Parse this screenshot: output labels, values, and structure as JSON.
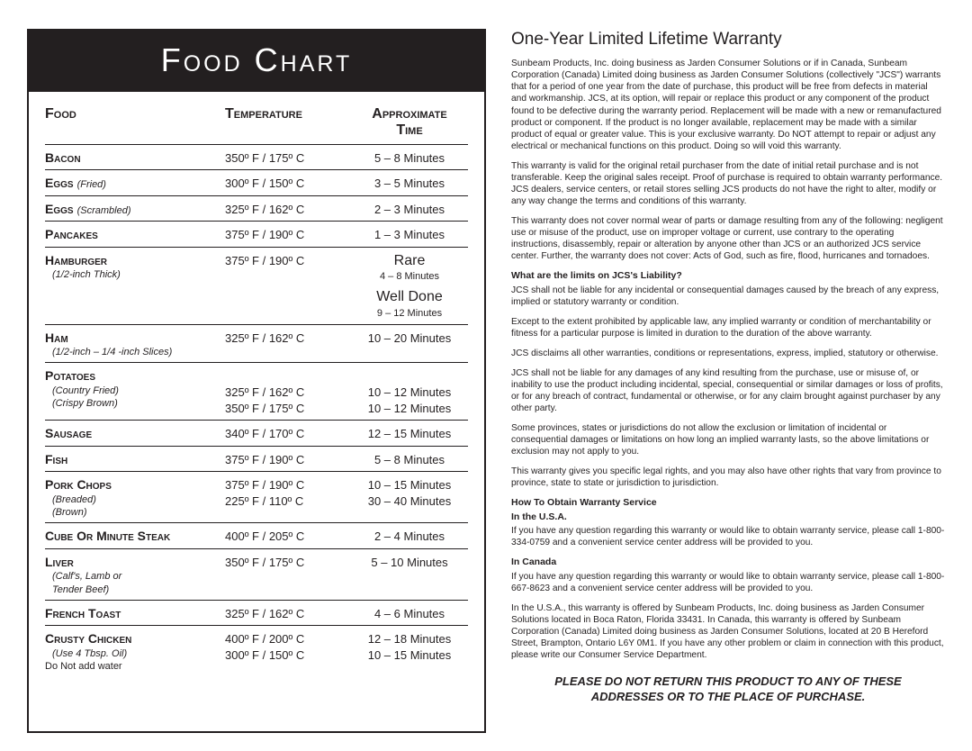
{
  "chart": {
    "title": "Food Chart",
    "headers": {
      "food": "Food",
      "temp": "Temperature",
      "approx": "Approximate",
      "time": "Time"
    },
    "rows": [
      {
        "name": "Bacon",
        "temp": "350º F / 175º C",
        "time": "5 – 8 Minutes"
      },
      {
        "name": "Eggs",
        "sub_inline": "(Fried)",
        "temp": "300º F / 150º C",
        "time": "3 – 5 Minutes"
      },
      {
        "name": "Eggs",
        "sub_inline": "(Scrambled)",
        "temp": "325º F / 162º C",
        "time": "2 – 3 Minutes"
      },
      {
        "name": "Pancakes",
        "temp": "375º F / 190º C",
        "time": "1 – 3 Minutes"
      },
      {
        "name": "Hamburger",
        "subs": [
          "(1/2-inch Thick)"
        ],
        "temp": "375º F / 190º C",
        "time_blocks": [
          {
            "head": "Rare",
            "sub": "4 – 8 Minutes"
          },
          {
            "head": "Well Done",
            "sub": "9 – 12 Minutes"
          }
        ]
      },
      {
        "name": "Ham",
        "subs": [
          "(1/2-inch  – 1/4 -inch Slices)"
        ],
        "temp": "325º F / 162º C",
        "time": "10 – 20 Minutes"
      },
      {
        "name": "Potatoes",
        "subs": [
          "(Country Fried)",
          "(Crispy Brown)"
        ],
        "temps": [
          "325º F / 162º C",
          "350º F / 175º C"
        ],
        "times": [
          "10 – 12 Minutes",
          "10 – 12 Minutes"
        ],
        "pad_top": true
      },
      {
        "name": "Sausage",
        "temp": "340º F / 170º C",
        "time": "12 – 15 Minutes"
      },
      {
        "name": "Fish",
        "temp": "375º F / 190º C",
        "time": "5 – 8 Minutes"
      },
      {
        "name": "Pork Chops",
        "subs": [
          "(Breaded)",
          "(Brown)"
        ],
        "temps": [
          "375º F / 190º C",
          "225º F / 110º C"
        ],
        "times": [
          "10 – 15 Minutes",
          "30 – 40 Minutes"
        ]
      },
      {
        "name": "Cube Or Minute Steak",
        "temp": "400º F / 205º C",
        "time": "2 – 4 Minutes"
      },
      {
        "name": "Liver",
        "subs": [
          "(Calf's, Lamb or",
          "Tender Beef)"
        ],
        "temp": "350º F / 175º C",
        "time": "5 – 10 Minutes"
      },
      {
        "name": "French Toast",
        "temp": "325º F / 162º C",
        "time": "4 – 6 Minutes"
      },
      {
        "name": "Crusty Chicken",
        "subs_italic": [
          "(Use 4 Tbsp. Oil)"
        ],
        "subs_plain": [
          "Do Not add water"
        ],
        "temps": [
          "400º F / 200º C",
          "300º F / 150º C"
        ],
        "times": [
          "12 – 18 Minutes",
          "10 – 15 Minutes"
        ]
      }
    ]
  },
  "warranty": {
    "heading": "One-Year Limited Lifetime Warranty",
    "paras": [
      "Sunbeam Products, Inc. doing business as Jarden Consumer Solutions or if in Canada, Sunbeam Corporation (Canada) Limited doing business as Jarden Consumer Solutions (collectively \"JCS\") warrants that for a period of one year from the date of purchase, this product will be free from defects in material and workmanship. JCS, at its option, will repair or replace this product or any component of the product found to be defective during the warranty period.  Replacement will be made with a new or remanufactured product or component. If the product is no longer available, replacement may be made with a similar product of equal or greater value.  This is your exclusive warranty.  Do NOT attempt to repair or adjust any electrical or mechanical functions on this product.  Doing so will void this warranty.",
      "This warranty is valid for the original retail purchaser from the date of initial retail purchase and is not transferable. Keep the original sales receipt.  Proof of purchase is required to obtain warranty performance. JCS dealers, service centers, or retail stores selling JCS products do not have the right to alter, modify or any way change the terms and conditions of this warranty.",
      "This warranty does not cover normal wear of parts or damage resulting from any of the following: negligent use or misuse of the product, use on improper voltage or current, use contrary to the operating instructions, disassembly, repair or alteration by anyone other than JCS or an authorized JCS service center.  Further, the warranty does not cover: Acts of God, such as fire, flood, hurricanes and tornadoes."
    ],
    "liability_head": "What are the limits on JCS's Liability?",
    "liability_paras": [
      "JCS shall not be liable for any incidental or consequential damages caused by the breach of any express, implied or statutory warranty or condition.",
      "Except to the extent prohibited by applicable law, any implied warranty or condition of merchantability or fitness for a particular purpose is limited in duration to the duration of the above warranty.",
      "JCS disclaims all other warranties, conditions or representations, express, implied, statutory or otherwise.",
      "JCS shall not be liable for any damages of any kind resulting from the purchase, use or misuse of, or inability to use the product including incidental, special, consequential or similar damages or loss of profits, or for any breach of contract, fundamental or otherwise, or for any claim brought against purchaser by any other party.",
      "Some provinces, states or jurisdictions do not allow the exclusion or limitation of incidental or consequential damages or limitations on how long an implied warranty lasts, so the above limitations or exclusion may not apply to you.",
      "This warranty gives you specific legal rights, and you may also have other rights that vary from province to province, state to state or jurisdiction to jurisdiction."
    ],
    "howto_head": "How To Obtain Warranty Service",
    "usa_head": "In the U.S.A.",
    "usa_text": "If you have any question regarding this warranty or would like to obtain warranty service, please call 1-800-334-0759 and a convenient service center address will be provided to you.",
    "canada_head": "In Canada",
    "canada_text": "If you have any question regarding this warranty or would like to obtain warranty service, please call 1-800-667-8623 and a convenient service center address will be provided to you.",
    "footer_para": "In the U.S.A., this warranty is offered by Sunbeam Products, Inc. doing business as Jarden Consumer Solutions located in Boca Raton, Florida 33431. In Canada, this warranty is offered by Sunbeam Corporation (Canada) Limited doing business as Jarden Consumer Solutions, located at 20 B Hereford Street, Brampton, Ontario L6Y 0M1. If you have any other problem or claim in connection with this product, please write our Consumer Service Department.",
    "return_notice_1": "PLEASE DO NOT RETURN THIS PRODUCT TO ANY OF THESE",
    "return_notice_2": "ADDRESSES OR TO THE PLACE OF PURCHASE."
  }
}
